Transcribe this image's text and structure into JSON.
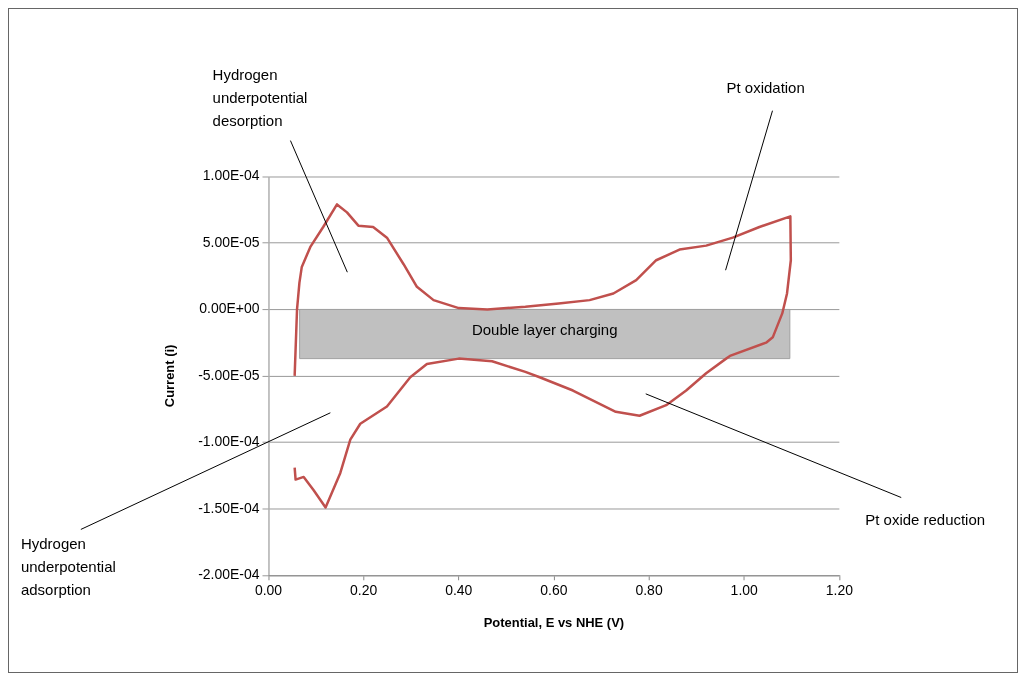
{
  "chart_data": {
    "type": "line",
    "xlabel": "Potential, E vs NHE (V)",
    "ylabel": "Current (i)",
    "series": [
      {
        "color": "#c0504d",
        "x": [
          0.055,
          0.058,
          0.06,
          0.065,
          0.07,
          0.088,
          0.115,
          0.144,
          0.165,
          0.189,
          0.22,
          0.249,
          0.284,
          0.312,
          0.347,
          0.4,
          0.46,
          0.54,
          0.61,
          0.675,
          0.725,
          0.773,
          0.815,
          0.864,
          0.92,
          0.976,
          1.032,
          1.097,
          1.098,
          1.09,
          1.08,
          1.06,
          1.046,
          0.97,
          0.962,
          0.92,
          0.878,
          0.836,
          0.78,
          0.73,
          0.64,
          0.57,
          0.54,
          0.47,
          0.4,
          0.333,
          0.298,
          0.249,
          0.193,
          0.172,
          0.151,
          0.12,
          0.095,
          0.074,
          0.057,
          0.055
        ],
        "values": [
          -5e-05,
          -2e-05,
          0,
          2e-05,
          3.2e-05,
          4.7e-05,
          6.2e-05,
          7.9e-05,
          7.3e-05,
          6.3e-05,
          6.2e-05,
          5.4e-05,
          3.4e-05,
          1.7e-05,
          7e-06,
          1e-06,
          0,
          2e-06,
          4.5e-06,
          7e-06,
          1.2e-05,
          2.2e-05,
          3.7e-05,
          4.5e-05,
          4.8e-05,
          5.4e-05,
          6.2e-05,
          7e-05,
          3.7e-05,
          1.2e-05,
          -3e-06,
          -2.1e-05,
          -2.5e-05,
          -3.5e-05,
          -3.7e-05,
          -4.8e-05,
          -6.1e-05,
          -7.2e-05,
          -8e-05,
          -7.7e-05,
          -6.1e-05,
          -5.1e-05,
          -4.7e-05,
          -3.9e-05,
          -3.7e-05,
          -4.1e-05,
          -5.1e-05,
          -7.3e-05,
          -8.6e-05,
          -9.8e-05,
          -0.000123,
          -0.000149,
          -0.000136,
          -0.000126,
          -0.000128,
          -0.000119
        ]
      }
    ],
    "xlim": [
      0,
      1.2
    ],
    "ylim": [
      -0.0002,
      0.0001
    ],
    "xticks": [
      {
        "value": 0,
        "label": "0.00"
      },
      {
        "value": 0.2,
        "label": "0.20"
      },
      {
        "value": 0.4,
        "label": "0.40"
      },
      {
        "value": 0.6,
        "label": "0.60"
      },
      {
        "value": 0.8,
        "label": "0.80"
      },
      {
        "value": 1,
        "label": "1.00"
      },
      {
        "value": 1.2,
        "label": "1.20"
      }
    ],
    "yticks": [
      {
        "value": -0.0002,
        "label": "-2.00E-04"
      },
      {
        "value": -0.00015,
        "label": "-1.50E-04"
      },
      {
        "value": -0.0001,
        "label": "-1.00E-04"
      },
      {
        "value": -5e-05,
        "label": "-5.00E-05"
      },
      {
        "value": 0,
        "label": "0.00E+00"
      },
      {
        "value": 5e-05,
        "label": "5.00E-05"
      },
      {
        "value": 0.0001,
        "label": "1.00E-04"
      }
    ],
    "bands": [
      {
        "axis": "y",
        "from": -3.7e-05,
        "to": 0,
        "label": "Double layer charging",
        "color": "#c0c0c0"
      }
    ],
    "annotations": [
      "Hydrogen\nunderpotential\ndesorption",
      "Pt oxidation",
      "Hydrogen\nunderpotential\nadsorption",
      "Pt oxide reduction"
    ],
    "grid": "y",
    "legend": false,
    "marker": "none",
    "line_style": "solid"
  }
}
